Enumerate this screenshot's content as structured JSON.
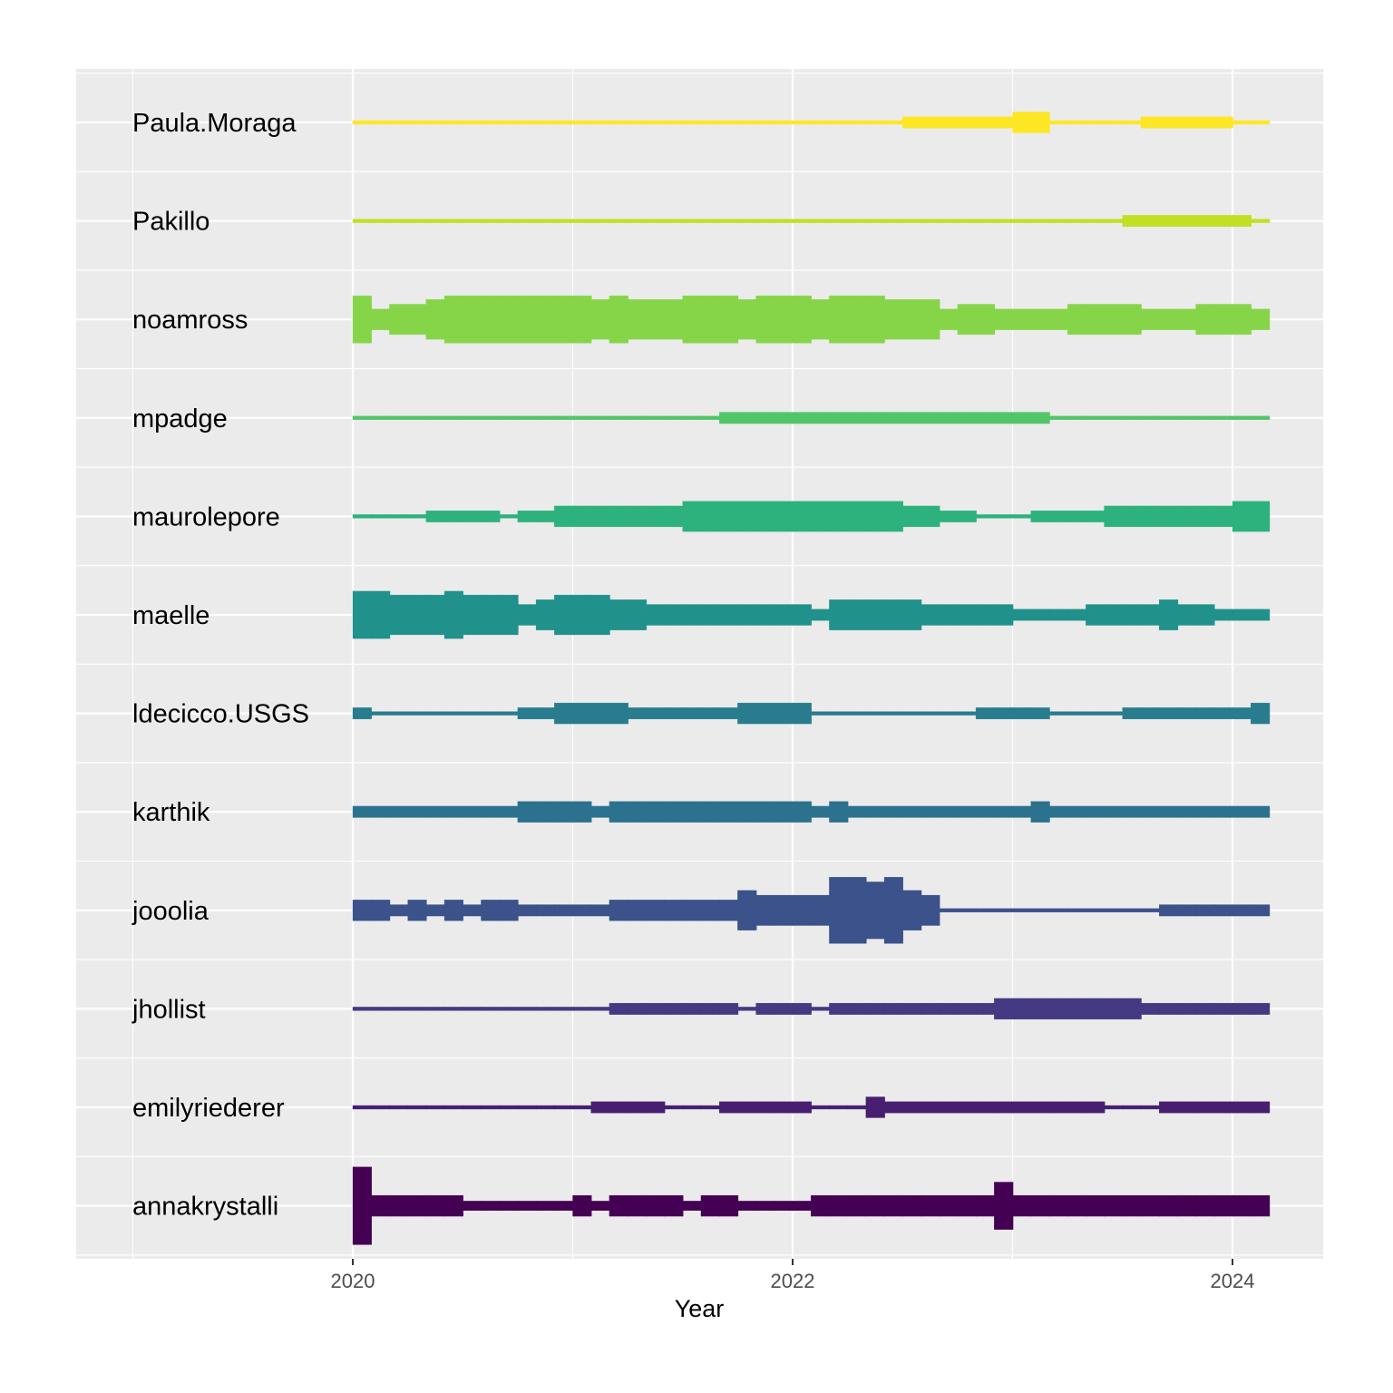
{
  "chart_data": {
    "type": "area",
    "title": "",
    "xlabel": "Year",
    "ylabel": "",
    "xlim": [
      "2019-01-01",
      "2024-06-01"
    ],
    "x_ticks": [
      "2020",
      "2022",
      "2024"
    ],
    "grid": true,
    "legend": "none",
    "period": "month",
    "start": "2020-01",
    "series": [
      {
        "name": "annakrystalli",
        "color": "#440154",
        "values": [
          41,
          11,
          11,
          11,
          11,
          11,
          5,
          5,
          5,
          5,
          5,
          5,
          11,
          5,
          11,
          11,
          11,
          11,
          5,
          11,
          11,
          5,
          5,
          5,
          5,
          11,
          11,
          11,
          11,
          11,
          11,
          11,
          11,
          11,
          11,
          25,
          11,
          11,
          11,
          11,
          11,
          11,
          11,
          11,
          11,
          11,
          11,
          11,
          11,
          11
        ]
      },
      {
        "name": "emilyriederer",
        "color": "#481f70",
        "values": [
          1,
          1,
          1,
          1,
          1,
          1,
          1,
          1,
          1,
          1,
          1,
          1,
          1,
          6,
          6,
          6,
          6,
          1,
          1,
          1,
          6,
          6,
          6,
          6,
          6,
          1,
          1,
          1,
          11,
          6,
          6,
          6,
          6,
          6,
          6,
          6,
          6,
          6,
          6,
          6,
          6,
          1,
          1,
          1,
          6,
          6,
          6,
          6,
          6,
          6
        ]
      },
      {
        "name": "jhollist",
        "color": "#443983",
        "values": [
          1,
          1,
          1,
          1,
          1,
          1,
          1,
          1,
          1,
          1,
          1,
          1,
          1,
          1,
          6,
          6,
          6,
          6,
          6,
          6,
          6,
          1,
          6,
          6,
          6,
          1,
          6,
          6,
          6,
          6,
          6,
          6,
          6,
          6,
          6,
          11,
          11,
          11,
          11,
          11,
          11,
          11,
          11,
          6,
          6,
          6,
          6,
          6,
          6,
          6
        ]
      },
      {
        "name": "jooolia",
        "color": "#3b528b",
        "values": [
          11,
          11,
          6,
          11,
          6,
          11,
          6,
          11,
          11,
          6,
          6,
          6,
          6,
          6,
          11,
          11,
          11,
          11,
          11,
          11,
          11,
          21,
          16,
          16,
          16,
          16,
          35,
          35,
          30,
          35,
          21,
          16,
          1,
          1,
          1,
          1,
          1,
          1,
          1,
          1,
          1,
          1,
          1,
          1,
          6,
          6,
          6,
          6,
          6,
          6
        ]
      },
      {
        "name": "karthik",
        "color": "#2c728e",
        "values": [
          6,
          6,
          6,
          6,
          6,
          6,
          6,
          6,
          6,
          11,
          11,
          11,
          11,
          6,
          11,
          11,
          11,
          11,
          11,
          11,
          11,
          11,
          11,
          11,
          11,
          6,
          11,
          6,
          6,
          6,
          6,
          6,
          6,
          6,
          6,
          6,
          6,
          11,
          6,
          6,
          6,
          6,
          6,
          6,
          6,
          6,
          6,
          6,
          6,
          6
        ]
      },
      {
        "name": "ldecicco.USGS",
        "color": "#287c8e",
        "values": [
          6,
          1,
          1,
          1,
          1,
          1,
          1,
          1,
          1,
          6,
          6,
          11,
          11,
          11,
          11,
          6,
          6,
          6,
          6,
          6,
          6,
          11,
          11,
          11,
          11,
          1,
          1,
          1,
          1,
          1,
          1,
          1,
          1,
          1,
          6,
          6,
          6,
          6,
          1,
          1,
          1,
          1,
          6,
          6,
          6,
          6,
          6,
          6,
          6,
          11
        ]
      },
      {
        "name": "maelle",
        "color": "#21918c",
        "values": [
          25,
          25,
          21,
          21,
          21,
          25,
          21,
          21,
          21,
          11,
          16,
          21,
          21,
          21,
          16,
          16,
          11,
          11,
          11,
          11,
          11,
          11,
          11,
          11,
          11,
          6,
          16,
          16,
          16,
          16,
          16,
          11,
          11,
          11,
          11,
          11,
          6,
          6,
          6,
          6,
          11,
          11,
          11,
          11,
          16,
          11,
          11,
          6,
          6,
          6
        ]
      },
      {
        "name": "maurolepore",
        "color": "#2db27d",
        "values": [
          1,
          1,
          1,
          1,
          6,
          6,
          6,
          6,
          1,
          6,
          6,
          11,
          11,
          11,
          11,
          11,
          11,
          11,
          16,
          16,
          16,
          16,
          16,
          16,
          16,
          16,
          16,
          16,
          16,
          16,
          11,
          11,
          6,
          6,
          1,
          1,
          1,
          6,
          6,
          6,
          6,
          11,
          11,
          11,
          11,
          11,
          11,
          11,
          16,
          16
        ]
      },
      {
        "name": "mpadge",
        "color": "#52c569",
        "values": [
          1,
          1,
          1,
          1,
          1,
          1,
          1,
          1,
          1,
          1,
          1,
          1,
          1,
          1,
          1,
          1,
          1,
          1,
          1,
          1,
          6,
          6,
          6,
          6,
          6,
          6,
          6,
          6,
          6,
          6,
          6,
          6,
          6,
          6,
          6,
          6,
          6,
          6,
          1,
          1,
          1,
          1,
          1,
          1,
          1,
          1,
          1,
          1,
          1,
          1
        ]
      },
      {
        "name": "noamross",
        "color": "#86d549",
        "values": [
          25,
          11,
          16,
          16,
          21,
          25,
          25,
          25,
          25,
          25,
          25,
          25,
          25,
          21,
          25,
          21,
          21,
          21,
          25,
          25,
          25,
          21,
          25,
          25,
          25,
          21,
          25,
          25,
          25,
          21,
          21,
          21,
          11,
          16,
          16,
          11,
          11,
          11,
          11,
          16,
          16,
          16,
          16,
          11,
          11,
          11,
          16,
          16,
          16,
          11
        ]
      },
      {
        "name": "Pakillo",
        "color": "#c2df23",
        "values": [
          1,
          1,
          1,
          1,
          1,
          1,
          1,
          1,
          1,
          1,
          1,
          1,
          1,
          1,
          1,
          1,
          1,
          1,
          1,
          1,
          1,
          1,
          1,
          1,
          1,
          1,
          1,
          1,
          1,
          1,
          1,
          1,
          1,
          1,
          1,
          1,
          1,
          1,
          1,
          1,
          1,
          1,
          6,
          6,
          6,
          6,
          6,
          6,
          6,
          1
        ]
      },
      {
        "name": "Paula.Moraga",
        "color": "#fde725",
        "values": [
          1,
          1,
          1,
          1,
          1,
          1,
          1,
          1,
          1,
          1,
          1,
          1,
          1,
          1,
          1,
          1,
          1,
          1,
          1,
          1,
          1,
          1,
          1,
          1,
          1,
          1,
          1,
          1,
          1,
          1,
          6,
          6,
          6,
          6,
          6,
          6,
          11,
          11,
          1,
          1,
          1,
          1,
          1,
          6,
          6,
          6,
          6,
          6,
          1,
          1
        ]
      }
    ]
  }
}
